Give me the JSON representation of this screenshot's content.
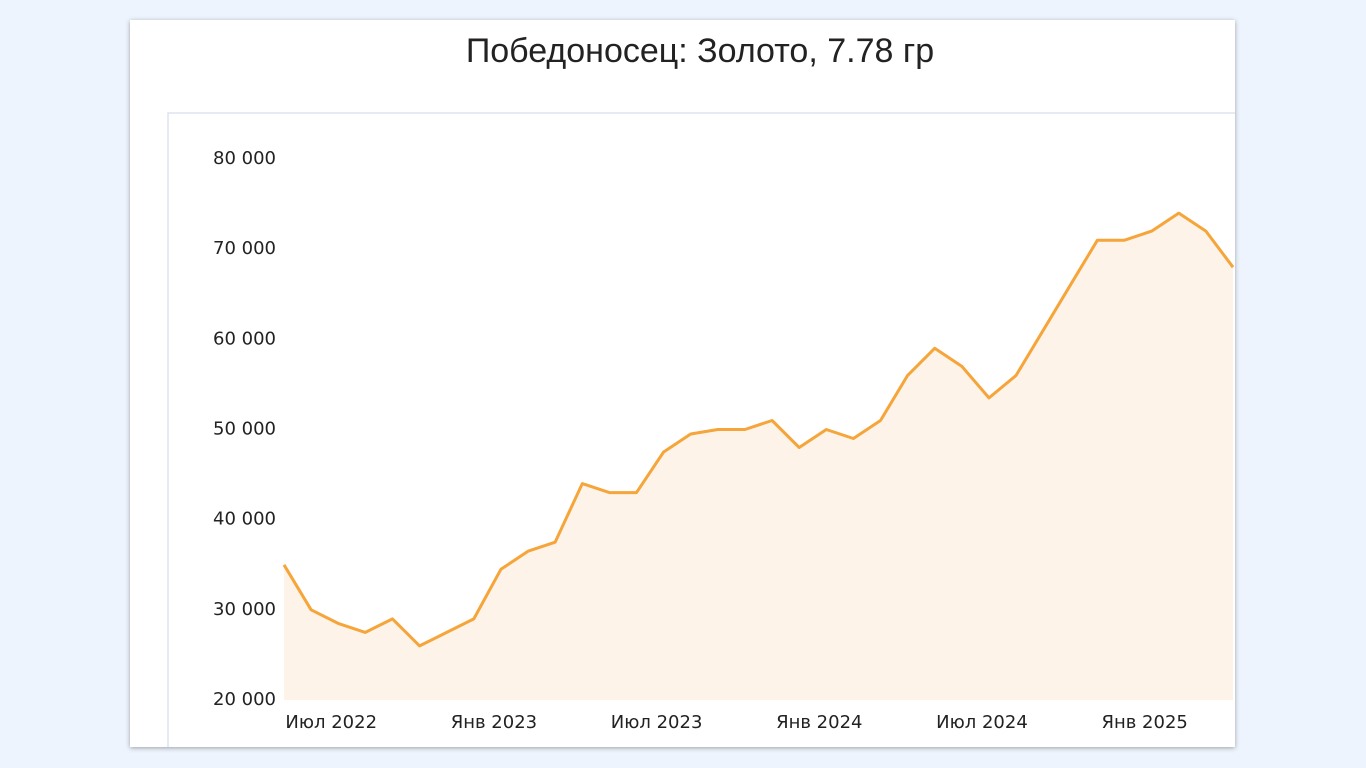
{
  "chart_data": {
    "type": "area",
    "title": "Победоносец: Золото, 7.78 гр",
    "x": [
      "2022-05",
      "2022-06",
      "2022-07",
      "2022-08",
      "2022-09",
      "2022-10",
      "2022-11",
      "2022-12",
      "2023-01",
      "2023-02",
      "2023-03",
      "2023-04",
      "2023-05",
      "2023-06",
      "2023-07",
      "2023-08",
      "2023-09",
      "2023-10",
      "2023-11",
      "2023-12",
      "2024-01",
      "2024-02",
      "2024-03",
      "2024-04",
      "2024-05",
      "2024-06",
      "2024-07",
      "2024-08",
      "2024-09",
      "2024-10",
      "2024-11",
      "2024-12",
      "2025-01",
      "2025-02",
      "2025-03",
      "2025-04"
    ],
    "series": [
      {
        "color": "#f5a53a",
        "fill": "#fdf3e8",
        "values": [
          35000,
          30000,
          28500,
          27500,
          29000,
          26000,
          27500,
          29000,
          34500,
          36500,
          37500,
          44000,
          43000,
          43000,
          47500,
          49500,
          50000,
          50000,
          51000,
          48000,
          50000,
          49000,
          51000,
          56000,
          59000,
          57000,
          53500,
          56000,
          61000,
          66000,
          71000,
          71000,
          72000,
          74000,
          72000,
          68000
        ]
      }
    ],
    "xlim": [
      "2022-05",
      "2025-04"
    ],
    "xticks": [
      {
        "value": "2022-07",
        "label": "Июл 2022"
      },
      {
        "value": "2023-01",
        "label": "Янв 2023"
      },
      {
        "value": "2023-07",
        "label": "Июл 2023"
      },
      {
        "value": "2024-01",
        "label": "Янв 2024"
      },
      {
        "value": "2024-07",
        "label": "Июл 2024"
      },
      {
        "value": "2025-01",
        "label": "Янв 2025"
      }
    ],
    "ylim": [
      20000,
      80000
    ],
    "yticks": [
      {
        "value": 20000,
        "label": "20 000"
      },
      {
        "value": 30000,
        "label": "30 000"
      },
      {
        "value": 40000,
        "label": "40 000"
      },
      {
        "value": 50000,
        "label": "50 000"
      },
      {
        "value": 60000,
        "label": "60 000"
      },
      {
        "value": 70000,
        "label": "70 000"
      },
      {
        "value": 80000,
        "label": "80 000"
      }
    ],
    "grid": false
  }
}
